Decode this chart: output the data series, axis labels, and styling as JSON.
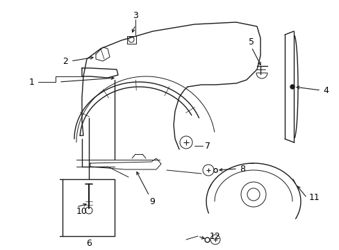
{
  "background_color": "#ffffff",
  "line_color": "#1a1a1a",
  "figure_width": 4.89,
  "figure_height": 3.6,
  "dpi": 100,
  "label_fontsize": 8.5
}
